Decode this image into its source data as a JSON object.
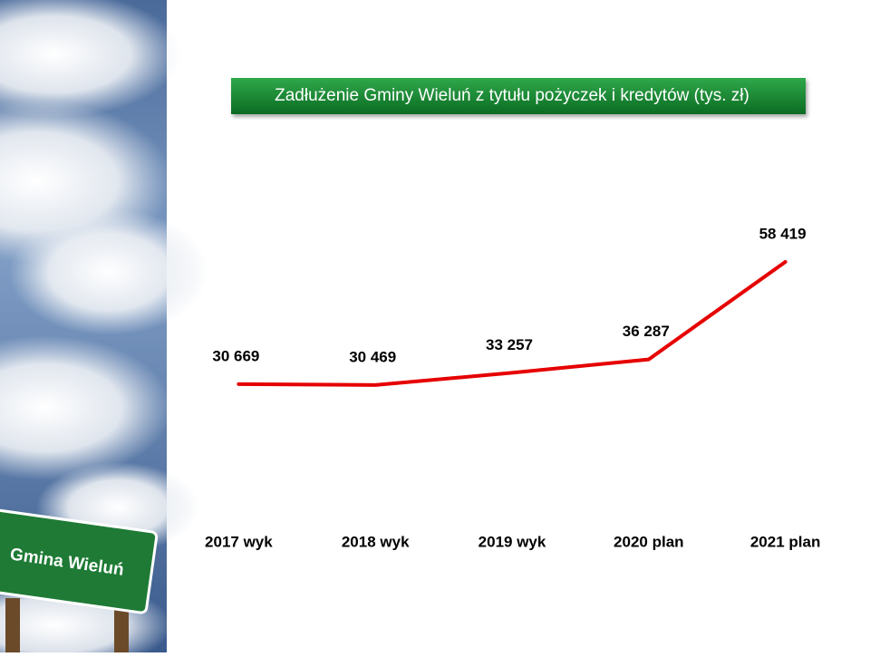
{
  "sign": {
    "text": "Gmina Wieluń"
  },
  "chart_data": {
    "type": "line",
    "title": "Zadłużenie Gminy Wieluń z tytułu pożyczek i kredytów (tys. zł)",
    "categories": [
      "2017 wyk",
      "2018 wyk",
      "2019 wyk",
      "2020 plan",
      "2021 plan"
    ],
    "series": [
      {
        "name": "Zadłużenie",
        "color": "#e60000",
        "values": [
          30669,
          30469,
          33257,
          36287,
          58419
        ],
        "value_labels": [
          "30 669",
          "30 469",
          "33 257",
          "36 287",
          "58 419"
        ]
      }
    ]
  }
}
